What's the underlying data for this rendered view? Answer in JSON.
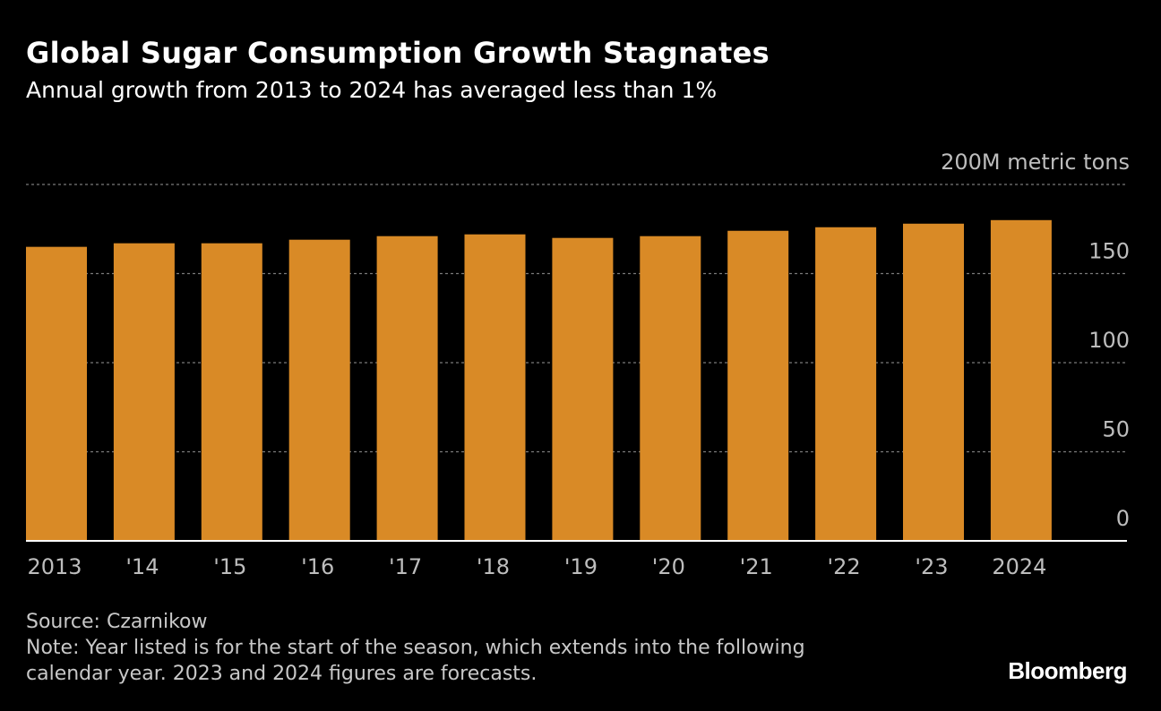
{
  "header": {
    "title": "Global Sugar Consumption Growth Stagnates",
    "subtitle": "Annual growth from 2013 to 2024 has averaged less than 1%"
  },
  "chart_data": {
    "type": "bar",
    "categories": [
      "2013",
      "'14",
      "'15",
      "'16",
      "'17",
      "'18",
      "'19",
      "'20",
      "'21",
      "'22",
      "'23",
      "2024"
    ],
    "values": [
      165,
      167,
      167,
      169,
      171,
      172,
      170,
      171,
      174,
      176,
      178,
      180
    ],
    "y_ticks": [
      "0",
      "50",
      "100",
      "150",
      "200M metric tons"
    ],
    "ylim": [
      0,
      200
    ],
    "grid": true,
    "colors": {
      "bar": "#d98a26",
      "grid": "#7a7a7a",
      "baseline": "#ffffff"
    }
  },
  "footer": {
    "source": "Source: Czarnikow",
    "note_line1": "Note: Year listed is for the start of the season, which extends into the following",
    "note_line2": "calendar year. 2023 and 2024 figures are forecasts."
  },
  "brand": "Bloomberg"
}
